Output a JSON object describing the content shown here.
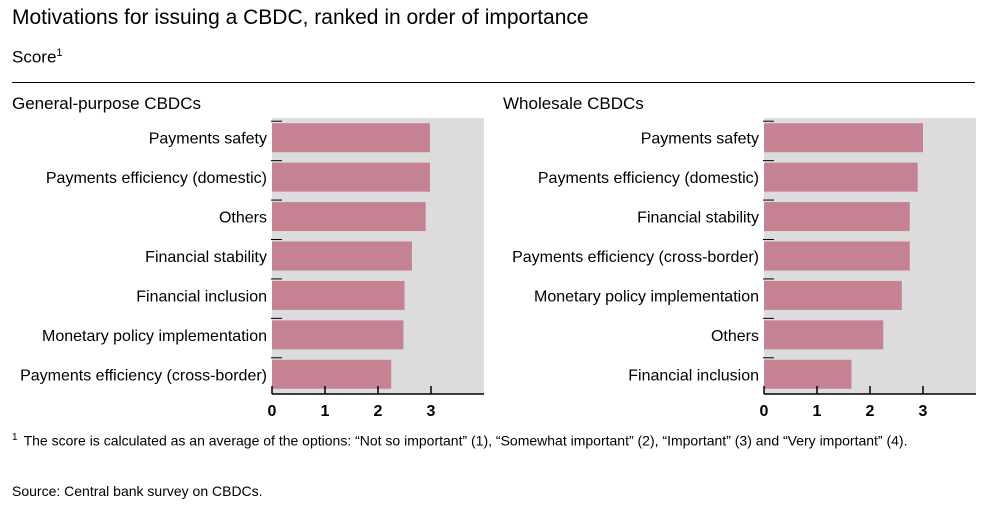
{
  "header": {
    "title": "Motivations for issuing a CBDC, ranked in order of importance",
    "subtitle": "Score",
    "subtitle_sup": "1"
  },
  "panels": {
    "left_title": "General-purpose CBDCs",
    "right_title": "Wholesale CBDCs"
  },
  "footer": {
    "footnote_mark": "1",
    "footnote": "The score is calculated as an average of the options: “Not so important” (1), “Somewhat important” (2), “Important” (3) and “Very important” (4).",
    "source": "Source: Central bank survey on CBDCs."
  },
  "colors": {
    "bar": "#c48292",
    "plot_bg": "#dcdcdc"
  },
  "chart_data": [
    {
      "type": "bar",
      "orientation": "horizontal",
      "title": "General-purpose CBDCs",
      "categories": [
        "Payments safety",
        "Payments efficiency (domestic)",
        "Others",
        "Financial stability",
        "Financial inclusion",
        "Monetary policy implementation",
        "Payments efficiency (cross-border)"
      ],
      "values": [
        2.98,
        2.98,
        2.9,
        2.64,
        2.5,
        2.48,
        2.25
      ],
      "xlim": [
        0,
        4
      ],
      "xticks": [
        0,
        1,
        2,
        3
      ],
      "grid": false
    },
    {
      "type": "bar",
      "orientation": "horizontal",
      "title": "Wholesale CBDCs",
      "categories": [
        "Payments safety",
        "Payments efficiency (domestic)",
        "Financial stability",
        "Payments efficiency (cross-border)",
        "Monetary policy implementation",
        "Others",
        "Financial inclusion"
      ],
      "values": [
        3.0,
        2.9,
        2.75,
        2.75,
        2.6,
        2.25,
        1.65
      ],
      "xlim": [
        0,
        4
      ],
      "xticks": [
        0,
        1,
        2,
        3
      ],
      "grid": false
    }
  ]
}
